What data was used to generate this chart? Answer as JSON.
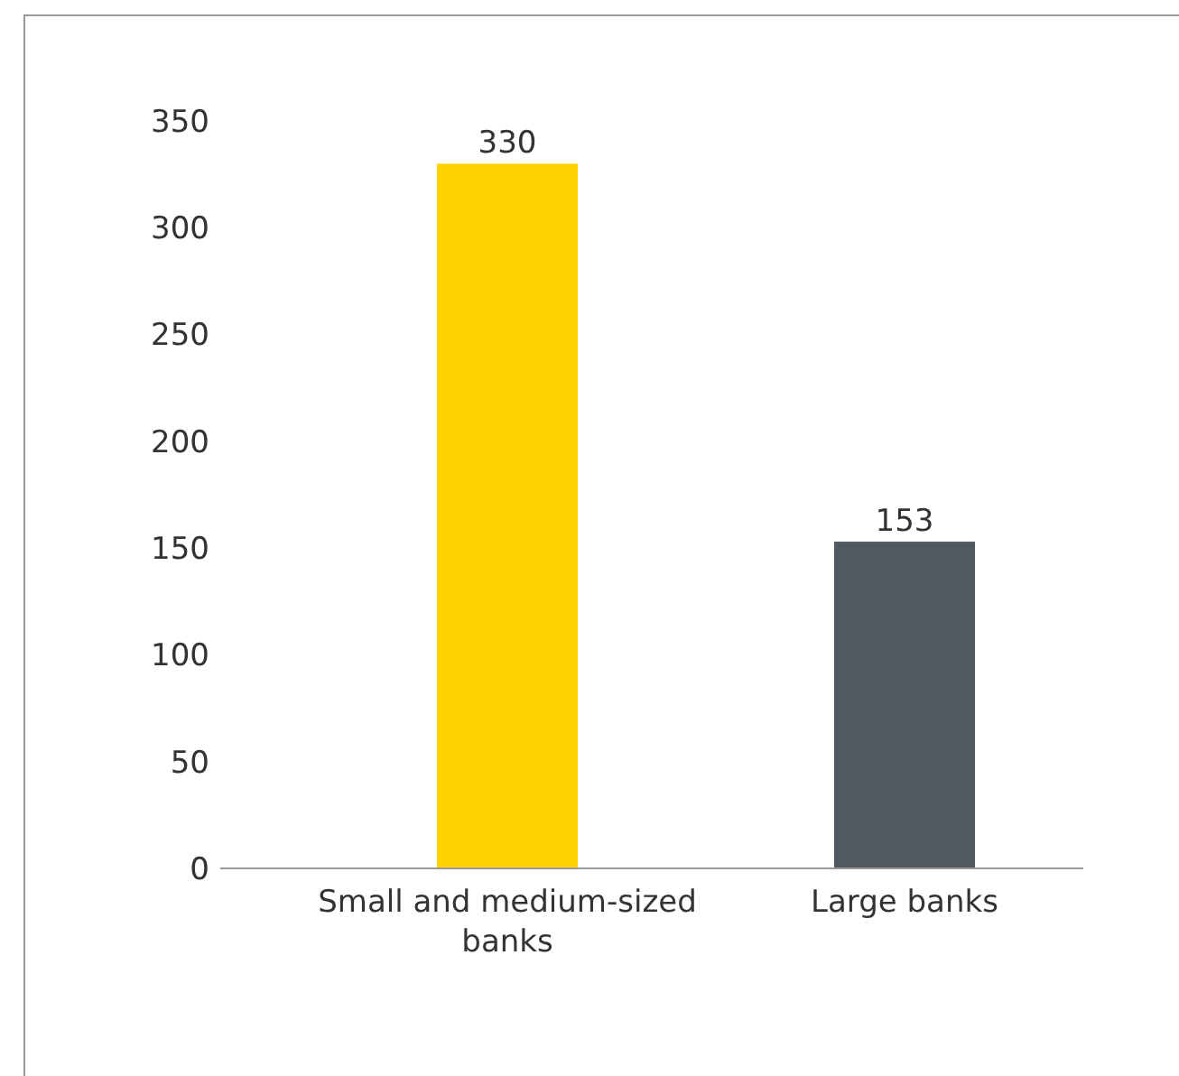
{
  "chart_data": {
    "type": "bar",
    "categories": [
      "Small and medium-sized banks",
      "Large banks"
    ],
    "values": [
      330,
      153
    ],
    "colors": [
      "#ffd200",
      "#4f5a63"
    ],
    "ylim": [
      0,
      350
    ],
    "yticks": [
      0,
      50,
      100,
      150,
      200,
      250,
      300,
      350
    ],
    "data_labels": true,
    "grid": false
  }
}
